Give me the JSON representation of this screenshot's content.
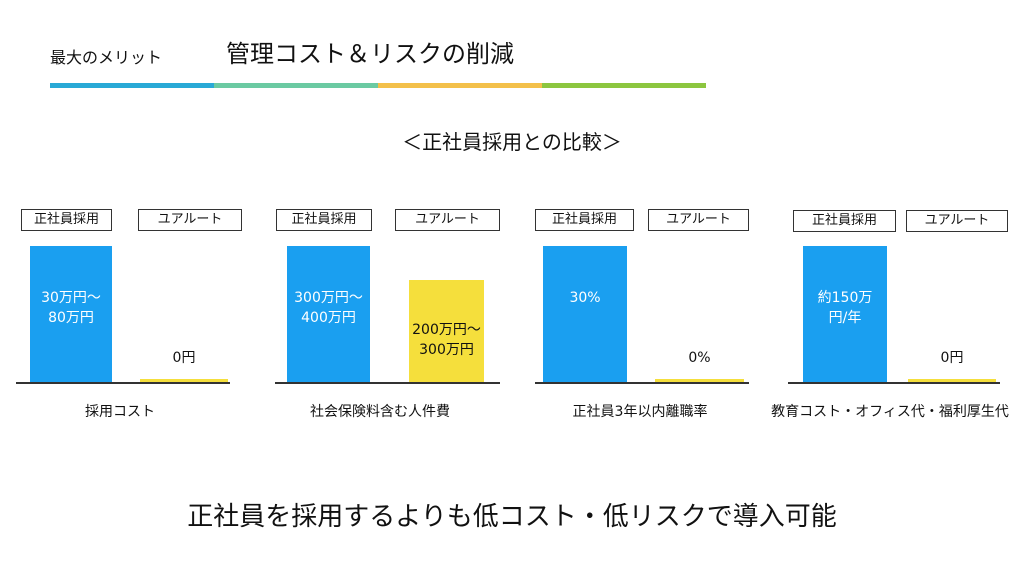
{
  "header": {
    "tag": "最大のメリット",
    "title": "管理コスト＆リスクの削減",
    "accent_colors": [
      "#29a9d6",
      "#6bcaa2",
      "#f3c04a",
      "#8cc63f"
    ]
  },
  "subtitle": "＜正社員採用との比較＞",
  "colors": {
    "series_a": "#1a9ff0",
    "series_b": "#f5df3c"
  },
  "chart_data": [
    {
      "type": "bar",
      "categories": [
        "正社員採用",
        "ユアルート"
      ],
      "values": [
        80,
        0
      ],
      "labels": [
        "30万円～\n80万円",
        "0円"
      ],
      "xlabel": "採用コスト"
    },
    {
      "type": "bar",
      "categories": [
        "正社員採用",
        "ユアルート"
      ],
      "values": [
        400,
        300
      ],
      "labels": [
        "300万円～\n400万円",
        "200万円～\n300万円"
      ],
      "xlabel": "社会保険料含む人件費"
    },
    {
      "type": "bar",
      "categories": [
        "正社員採用",
        "ユアルート"
      ],
      "values": [
        30,
        0
      ],
      "labels": [
        "30%",
        "0%"
      ],
      "xlabel": "正社員3年以内離職率"
    },
    {
      "type": "bar",
      "categories": [
        "正社員採用",
        "ユアルート"
      ],
      "values": [
        150,
        0
      ],
      "labels": [
        "約150万\n円/年",
        "0円"
      ],
      "xlabel": "教育コスト・オフィス代・福利厚生代"
    }
  ],
  "footer": "正社員を採用するよりも低コスト・低リスクで導入可能"
}
